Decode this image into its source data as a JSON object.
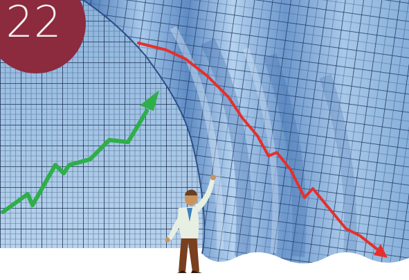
{
  "issue_badge": {
    "number": "22",
    "color": "#8c2a3e"
  },
  "illustration": {
    "grid_color": "#1b2d4f",
    "panel_color": "#9fc4e8",
    "rising_line_color": "#2fae4a",
    "falling_line_color": "#e5302b"
  }
}
